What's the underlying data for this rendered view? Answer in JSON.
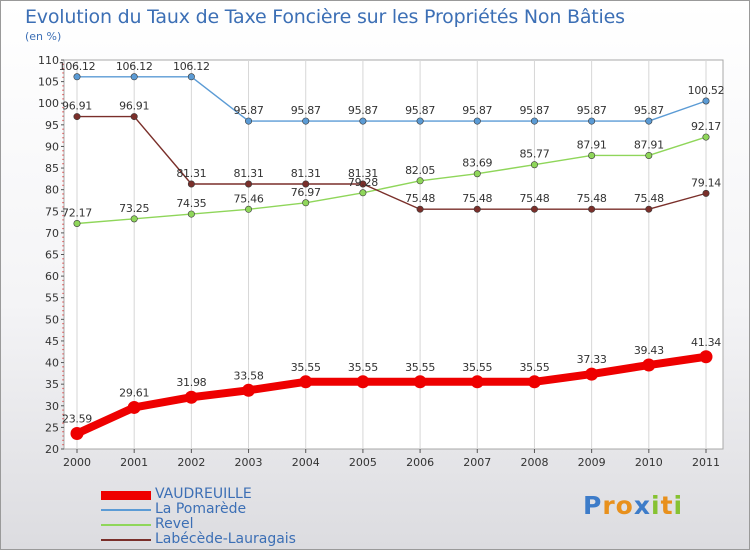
{
  "title": "Evolution du Taux de Taxe Foncière sur les Propriétés Non Bâties",
  "unit_label": "(en %)",
  "logo": {
    "text": "Proxiti",
    "letter_colors": [
      "#3d7cc9",
      "#e8901c",
      "#e8901c",
      "#3d7cc9",
      "#86c232",
      "#e8901c",
      "#86c232"
    ]
  },
  "chart_data": {
    "type": "line",
    "title": "Evolution du Taux de Taxe Foncière sur les Propriétés Non Bâties",
    "ylabel": "(en %)",
    "xlabel": "",
    "x": [
      "2000",
      "2001",
      "2002",
      "2003",
      "2004",
      "2005",
      "2006",
      "2007",
      "2008",
      "2009",
      "2010",
      "2011"
    ],
    "ylim": [
      20,
      110
    ],
    "y_ticks": [
      20,
      25,
      30,
      35,
      40,
      45,
      50,
      55,
      60,
      65,
      70,
      75,
      80,
      85,
      90,
      95,
      100,
      105,
      110
    ],
    "grid": "vertical",
    "legend_position": "bottom-left",
    "series": [
      {
        "name": "VAUDREUILLE",
        "color": "#ee0000",
        "emphasis": true,
        "values": [
          23.59,
          29.61,
          31.98,
          33.58,
          35.55,
          35.55,
          35.55,
          35.55,
          35.55,
          37.33,
          39.43,
          41.34
        ],
        "labels": [
          "23.59",
          "29.61",
          "31.98",
          "33.58",
          "35.55",
          "35.55",
          "35.55",
          "35.55",
          "35.55",
          "37.33",
          "39.43",
          "41.34"
        ]
      },
      {
        "name": "La Pomarède",
        "color": "#5b9bd5",
        "emphasis": false,
        "values": [
          106.12,
          106.12,
          106.12,
          95.87,
          95.87,
          95.87,
          95.87,
          95.87,
          95.87,
          95.87,
          95.87,
          100.52
        ],
        "labels": [
          "106.12",
          "106.12",
          "106.12",
          "95.87",
          "95.87",
          "95.87",
          "95.87",
          "95.87",
          "95.87",
          "95.87",
          "95.87",
          "100.52"
        ]
      },
      {
        "name": "Revel",
        "color": "#8fd65a",
        "emphasis": false,
        "values": [
          72.17,
          73.25,
          74.35,
          75.46,
          76.97,
          79.28,
          82.05,
          83.69,
          85.77,
          87.91,
          87.91,
          92.17
        ],
        "labels": [
          "72.17",
          "73.25",
          "74.35",
          "75.46",
          "76.97",
          "79.28",
          "82.05",
          "83.69",
          "85.77",
          "87.91",
          "87.91",
          "92.17"
        ]
      },
      {
        "name": "Labécède-Lauragais",
        "color": "#7a2f2a",
        "emphasis": false,
        "values": [
          96.91,
          96.91,
          81.31,
          81.31,
          81.31,
          81.31,
          75.48,
          75.48,
          75.48,
          75.48,
          75.48,
          79.14
        ],
        "labels": [
          "96.91",
          "96.91",
          "81.31",
          "81.31",
          "81.31",
          "81.31",
          "75.48",
          "75.48",
          "75.48",
          "75.48",
          "75.48",
          "79.14"
        ]
      }
    ]
  }
}
